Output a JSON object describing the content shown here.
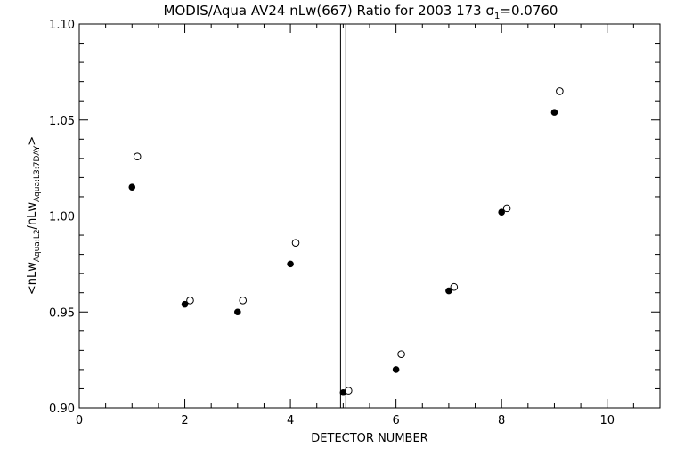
{
  "chart_data": {
    "type": "scatter",
    "title": "MODIS/Aqua AV24 nLw(667) Ratio for 2003 173 σ",
    "title_sub": "1",
    "title_tail": "=0.0760",
    "xlabel": "DETECTOR NUMBER",
    "ylabel": {
      "prefix": "<nLw",
      "sub1": "Aqua:L2",
      "mid": "/nLw",
      "sub2": "Aqua:L3:7DAY",
      "suffix": ">"
    },
    "xlim": [
      0,
      11
    ],
    "ylim": [
      0.9,
      1.1
    ],
    "x_ticks": [
      0,
      2,
      4,
      6,
      8,
      10
    ],
    "x_tick_labels": [
      "0",
      "2",
      "4",
      "6",
      "8",
      "10"
    ],
    "x_minor_step": 0.5,
    "y_ticks": [
      0.9,
      0.95,
      1.0,
      1.05,
      1.1
    ],
    "y_tick_labels": [
      "0.90",
      "0.95",
      "1.00",
      "1.05",
      "1.10"
    ],
    "y_minor_step": 0.01,
    "reference_line_y": 1.0,
    "vertical_lines_x": [
      4.95,
      5.05
    ],
    "series": [
      {
        "marker": "filled-circle",
        "x": [
          1,
          2,
          3,
          4,
          5,
          6,
          7,
          8,
          9
        ],
        "y": [
          1.015,
          0.954,
          0.95,
          0.975,
          0.908,
          0.92,
          0.961,
          1.002,
          1.054
        ]
      },
      {
        "marker": "open-circle",
        "x": [
          1.1,
          2.1,
          3.1,
          4.1,
          5.1,
          6.1,
          7.1,
          8.1,
          9.1
        ],
        "y": [
          1.031,
          0.956,
          0.956,
          0.986,
          0.909,
          0.928,
          0.963,
          1.004,
          1.065
        ]
      }
    ]
  }
}
